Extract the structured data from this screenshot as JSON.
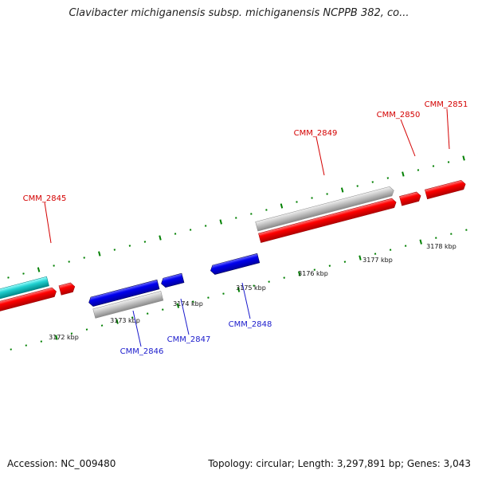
{
  "title": "Clavibacter michiganensis subsp. michiganensis NCPPB 382, co...",
  "footer": {
    "accession": "Accession: NC_009480",
    "topology": "Topology: circular; Length: 3,297,891 bp; Genes: 3,043"
  },
  "colors": {
    "forward_cds": "#ff0000",
    "reverse_cds": "#0000ff",
    "other_feature": "#00cccc",
    "pseudo_or_rna": "#c8c8c8",
    "backbone": "#808080",
    "ticks": "#008000",
    "forward_label": "#d40000",
    "reverse_label": "#1a1acc"
  },
  "scale": {
    "tick_labels": [
      "3172 kbp",
      "3173 kbp",
      "3174 kbp",
      "3175 kbp",
      "3176 kbp",
      "3177 kbp",
      "3178 kbp"
    ]
  },
  "genes": {
    "forward_labels": [
      "CMM_2845",
      "CMM_2849",
      "CMM_2850",
      "CMM_2851"
    ],
    "reverse_labels": [
      "CMM_2846",
      "CMM_2847",
      "CMM_2848"
    ]
  }
}
